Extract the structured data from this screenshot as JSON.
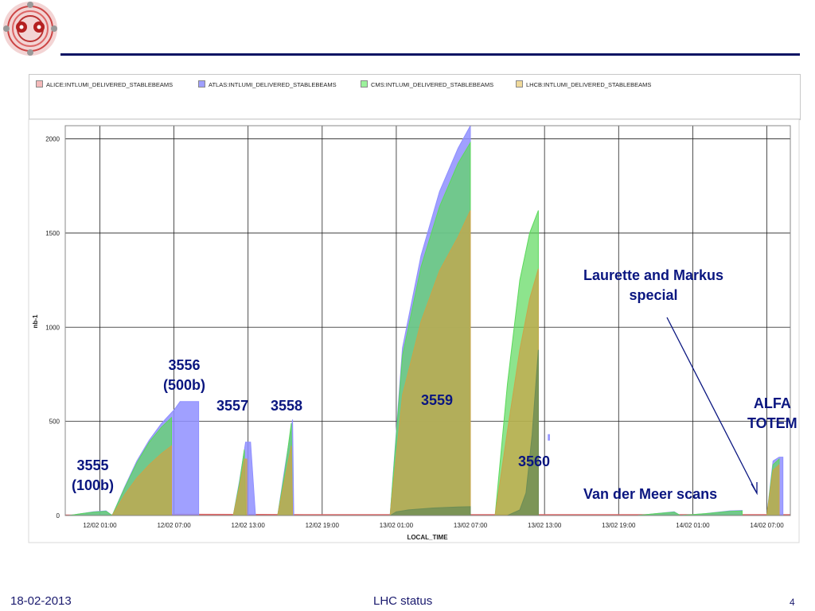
{
  "footer": {
    "date": "18-02-2013",
    "title": "LHC status",
    "page": "4"
  },
  "chart_data": {
    "type": "area",
    "title": "",
    "xlabel": "LOCAL_TIME",
    "ylabel": "nb-1",
    "x_unit": "hours",
    "x_tick_labels": [
      "12/02 01:00",
      "12/02 07:00",
      "12/02 13:00",
      "12/02 19:00",
      "13/02 01:00",
      "13/02 07:00",
      "13/02 13:00",
      "13/02 19:00",
      "14/02 01:00",
      "14/02 07:00"
    ],
    "x_ticks": [
      1,
      7,
      13,
      19,
      25,
      31,
      37,
      43,
      49,
      55
    ],
    "xlim": [
      -1.8,
      56.9
    ],
    "y_ticks": [
      0,
      500,
      1000,
      1500,
      2000
    ],
    "ylim": [
      0,
      2070
    ],
    "grid": true,
    "legend_position": "top",
    "series": [
      {
        "name": "ALICE:INTLUMI_DELIVERED_STABLEBEAMS",
        "color": "#e06666",
        "fills": [
          {
            "points": [
              [
                -1.8,
                2
              ],
              [
                1,
                2
              ],
              [
                2,
                3
              ],
              [
                5,
                4
              ],
              [
                6.6,
                5
              ],
              [
                7,
                6
              ],
              [
                13,
                5
              ],
              [
                14,
                5
              ],
              [
                19,
                4
              ],
              [
                25,
                4
              ],
              [
                31,
                4
              ],
              [
                37,
                4
              ],
              [
                43,
                4
              ],
              [
                49,
                4
              ],
              [
                55,
                4
              ],
              [
                56.9,
                4
              ]
            ]
          }
        ]
      },
      {
        "name": "ATLAS:INTLUMI_DELIVERED_STABLEBEAMS",
        "color": "#8f8fff",
        "fills": [
          {
            "points": [
              [
                -1.5,
                0
              ],
              [
                -0.5,
                10
              ],
              [
                0.5,
                20
              ],
              [
                1.5,
                25
              ],
              [
                2,
                0
              ]
            ]
          },
          {
            "points": [
              [
                2,
                0
              ],
              [
                3,
                150
              ],
              [
                4,
                290
              ],
              [
                5,
                400
              ],
              [
                6,
                490
              ],
              [
                7,
                560
              ],
              [
                7.5,
                605
              ],
              [
                9,
                605
              ],
              [
                9,
                0
              ]
            ]
          },
          {
            "points": [
              [
                11.8,
                0
              ],
              [
                12.3,
                180
              ],
              [
                12.8,
                390
              ],
              [
                13.2,
                390
              ],
              [
                13.6,
                0
              ]
            ]
          },
          {
            "points": [
              [
                15.4,
                0
              ],
              [
                16,
                260
              ],
              [
                16.6,
                510
              ],
              [
                16.7,
                0
              ]
            ]
          },
          {
            "points": [
              [
                24.5,
                0
              ],
              [
                25.5,
                890
              ],
              [
                27,
                1380
              ],
              [
                28.5,
                1720
              ],
              [
                30,
                1950
              ],
              [
                31,
                2070
              ],
              [
                31,
                0
              ]
            ]
          },
          {
            "points": [
              [
                37.3,
                400
              ],
              [
                37.4,
                400
              ],
              [
                37.4,
                430
              ],
              [
                37.3,
                430
              ]
            ]
          },
          {
            "points": [
              [
                44.5,
                0
              ],
              [
                46,
                10
              ],
              [
                47.5,
                20
              ],
              [
                48,
                0
              ]
            ]
          },
          {
            "points": [
              [
                48,
                0
              ],
              [
                50,
                10
              ],
              [
                52,
                25
              ],
              [
                53,
                27
              ],
              [
                53,
                0
              ]
            ]
          },
          {
            "points": [
              [
                55,
                0
              ],
              [
                55.5,
                290
              ],
              [
                56,
                310
              ],
              [
                56.3,
                310
              ],
              [
                56.3,
                0
              ]
            ]
          }
        ]
      },
      {
        "name": "CMS:INTLUMI_DELIVERED_STABLEBEAMS",
        "color": "#5cd95c",
        "fills": [
          {
            "points": [
              [
                -1.5,
                0
              ],
              [
                -0.5,
                10
              ],
              [
                0.5,
                18
              ],
              [
                1.5,
                22
              ],
              [
                2,
                0
              ]
            ]
          },
          {
            "points": [
              [
                2,
                0
              ],
              [
                3,
                145
              ],
              [
                4,
                280
              ],
              [
                5,
                390
              ],
              [
                6,
                470
              ],
              [
                6.8,
                520
              ],
              [
                6.8,
                0
              ]
            ]
          },
          {
            "points": [
              [
                11.8,
                0
              ],
              [
                12.3,
                170
              ],
              [
                12.7,
                350
              ],
              [
                12.8,
                0
              ]
            ]
          },
          {
            "points": [
              [
                15.4,
                0
              ],
              [
                16,
                240
              ],
              [
                16.5,
                490
              ],
              [
                16.6,
                0
              ]
            ]
          },
          {
            "points": [
              [
                24.5,
                0
              ],
              [
                25.5,
                850
              ],
              [
                27,
                1320
              ],
              [
                28.5,
                1640
              ],
              [
                30,
                1870
              ],
              [
                31,
                1980
              ],
              [
                31,
                0
              ]
            ]
          },
          {
            "points": [
              [
                33,
                0
              ],
              [
                34,
                700
              ],
              [
                35,
                1250
              ],
              [
                35.8,
                1500
              ],
              [
                36.5,
                1620
              ],
              [
                36.5,
                0
              ]
            ]
          },
          {
            "points": [
              [
                44.5,
                0
              ],
              [
                46,
                10
              ],
              [
                47.5,
                18
              ],
              [
                48,
                0
              ]
            ]
          },
          {
            "points": [
              [
                48,
                0
              ],
              [
                50,
                10
              ],
              [
                52,
                22
              ],
              [
                53,
                24
              ],
              [
                53,
                0
              ]
            ]
          },
          {
            "points": [
              [
                55,
                0
              ],
              [
                55.5,
                270
              ],
              [
                56,
                300
              ],
              [
                56,
                0
              ]
            ]
          }
        ]
      },
      {
        "name": "LHCB:INTLUMI_DELIVERED_STABLEBEAMS",
        "color": "#c8a64a",
        "fills": [
          {
            "points": [
              [
                2,
                0
              ],
              [
                3,
                110
              ],
              [
                4,
                200
              ],
              [
                5,
                270
              ],
              [
                6,
                330
              ],
              [
                6.8,
                370
              ],
              [
                6.8,
                0
              ]
            ]
          },
          {
            "points": [
              [
                11.8,
                0
              ],
              [
                12.3,
                150
              ],
              [
                12.7,
                300
              ],
              [
                12.9,
                300
              ],
              [
                12.9,
                0
              ]
            ]
          },
          {
            "points": [
              [
                15.4,
                0
              ],
              [
                16,
                200
              ],
              [
                16.5,
                370
              ],
              [
                16.6,
                0
              ]
            ]
          },
          {
            "points": [
              [
                24.5,
                0
              ],
              [
                25.5,
                640
              ],
              [
                27,
                1030
              ],
              [
                28.5,
                1300
              ],
              [
                30,
                1480
              ],
              [
                31,
                1620
              ],
              [
                31,
                0
              ]
            ]
          },
          {
            "points": [
              [
                33,
                0
              ],
              [
                34,
                450
              ],
              [
                35,
                880
              ],
              [
                35.8,
                1150
              ],
              [
                36.5,
                1310
              ],
              [
                36.5,
                0
              ]
            ]
          },
          {
            "points": [
              [
                55,
                0
              ],
              [
                55.5,
                240
              ],
              [
                56,
                270
              ],
              [
                56,
                0
              ]
            ]
          }
        ]
      },
      {
        "name": "",
        "color": "#6d8d55",
        "fills": [
          {
            "points": [
              [
                24.5,
                0
              ],
              [
                25,
                20
              ],
              [
                26,
                30
              ],
              [
                28,
                40
              ],
              [
                30,
                45
              ],
              [
                31,
                47
              ],
              [
                31,
                0
              ]
            ]
          },
          {
            "points": [
              [
                34,
                0
              ],
              [
                35,
                30
              ],
              [
                35.5,
                120
              ],
              [
                36,
                430
              ],
              [
                36.5,
                880
              ],
              [
                36.5,
                0
              ]
            ]
          }
        ]
      }
    ],
    "annotations": [
      {
        "text": "3555 (100b)"
      },
      {
        "text": "3556 (500b)"
      },
      {
        "text": "3557"
      },
      {
        "text": "3558"
      },
      {
        "text": "3559"
      },
      {
        "text": "3560"
      },
      {
        "text": "Laurette and Markus special"
      },
      {
        "text": "ALFA TOTEM"
      },
      {
        "text": "Van der Meer scans"
      }
    ]
  }
}
